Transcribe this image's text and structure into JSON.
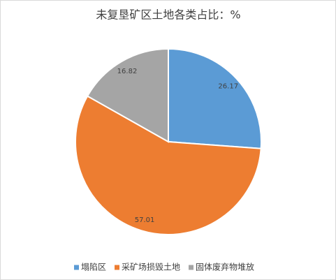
{
  "chart_data": {
    "type": "pie",
    "title": "未复垦矿区土地各类占比：%",
    "categories": [
      "塌陷区",
      "采矿场损毁土地",
      "固体废弃物堆放"
    ],
    "values": [
      26.17,
      57.01,
      16.82
    ],
    "colors": [
      "#5b9bd5",
      "#ed7d31",
      "#a5a5a5"
    ],
    "legend": "bottom"
  }
}
